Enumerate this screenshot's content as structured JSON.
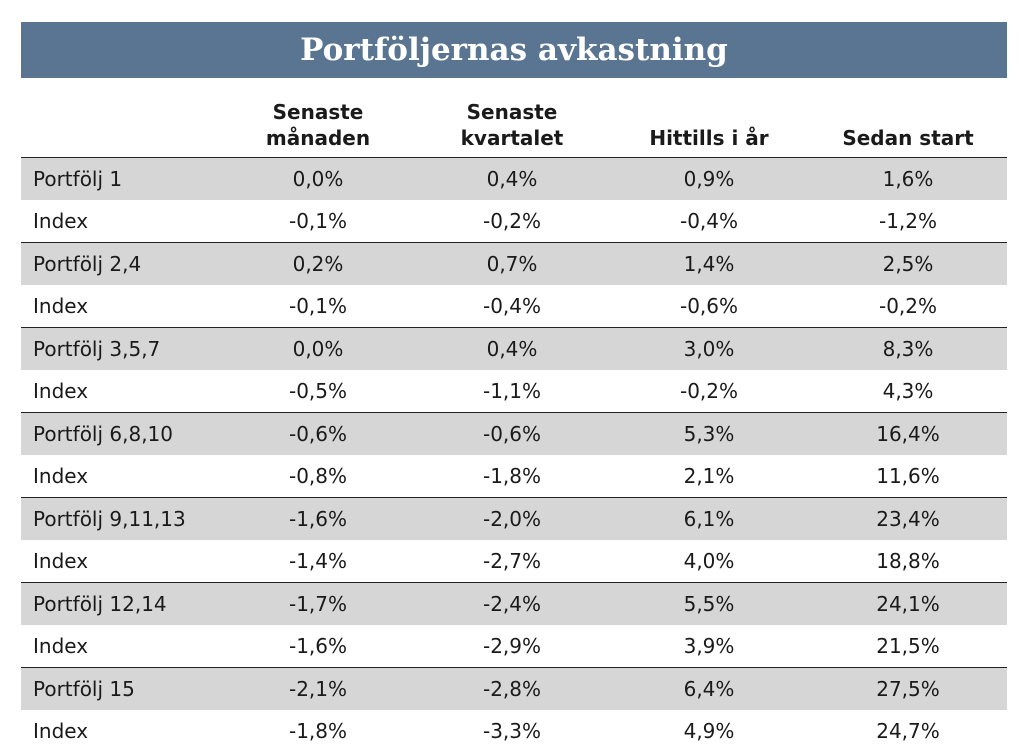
{
  "chart_data": {
    "type": "table",
    "title": "Portföljernas avkastning",
    "columns": [
      "",
      "Senaste\nmånaden",
      "Senaste\nkvartalet",
      "Hittills i år",
      "Sedan start"
    ],
    "rows": [
      [
        "Portfölj 1",
        "0,0%",
        "0,4%",
        "0,9%",
        "1,6%"
      ],
      [
        "Index",
        "-0,1%",
        "-0,2%",
        "-0,4%",
        "-1,2%"
      ],
      [
        "Portfölj 2,4",
        "0,2%",
        "0,7%",
        "1,4%",
        "2,5%"
      ],
      [
        "Index",
        "-0,1%",
        "-0,4%",
        "-0,6%",
        "-0,2%"
      ],
      [
        "Portfölj 3,5,7",
        "0,0%",
        "0,4%",
        "3,0%",
        "8,3%"
      ],
      [
        "Index",
        "-0,5%",
        "-1,1%",
        "-0,2%",
        "4,3%"
      ],
      [
        "Portfölj 6,8,10",
        "-0,6%",
        "-0,6%",
        "5,3%",
        "16,4%"
      ],
      [
        "Index",
        "-0,8%",
        "-1,8%",
        "2,1%",
        "11,6%"
      ],
      [
        "Portfölj 9,11,13",
        "-1,6%",
        "-2,0%",
        "6,1%",
        "23,4%"
      ],
      [
        "Index",
        "-1,4%",
        "-2,7%",
        "4,0%",
        "18,8%"
      ],
      [
        "Portfölj 12,14",
        "-1,7%",
        "-2,4%",
        "5,5%",
        "24,1%"
      ],
      [
        "Index",
        "-1,6%",
        "-2,9%",
        "3,9%",
        "21,5%"
      ],
      [
        "Portfölj 15",
        "-2,1%",
        "-2,8%",
        "6,4%",
        "27,5%"
      ],
      [
        "Index",
        "-1,8%",
        "-3,3%",
        "4,9%",
        "24,7%"
      ]
    ]
  },
  "colors": {
    "title_bar": "#5a7592",
    "portfolio_row": "#d6d6d6",
    "index_row": "#ffffff",
    "rule": "#222222"
  }
}
